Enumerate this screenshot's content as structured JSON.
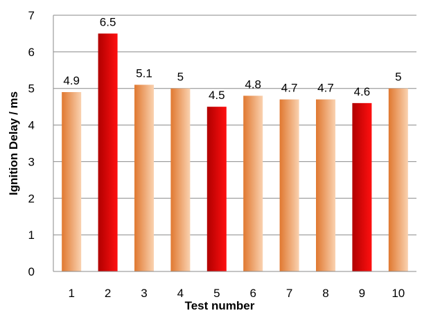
{
  "chart_data": {
    "type": "bar",
    "categories": [
      "1",
      "2",
      "3",
      "4",
      "5",
      "6",
      "7",
      "8",
      "9",
      "10"
    ],
    "values": [
      4.9,
      6.5,
      5.1,
      5,
      4.5,
      4.8,
      4.7,
      4.7,
      4.6,
      5
    ],
    "data_labels": [
      "4.9",
      "6.5",
      "5.1",
      "5",
      "4.5",
      "4.8",
      "4.7",
      "4.7",
      "4.6",
      "5"
    ],
    "bar_styles": [
      "orange",
      "red",
      "orange",
      "orange",
      "red",
      "orange",
      "orange",
      "orange",
      "red",
      "orange"
    ],
    "title": "",
    "xlabel": "Test number",
    "ylabel": "Ignition Delay / ms",
    "ylim": [
      0,
      7
    ],
    "yticks": [
      "0",
      "1",
      "2",
      "3",
      "4",
      "5",
      "6",
      "7"
    ],
    "grid": true,
    "legend": "none",
    "colors": {
      "orange_dark": "#e07830",
      "orange_light": "#fad2b0",
      "red_dark": "#b00000",
      "red_light": "#ff1010",
      "grid": "#888888"
    }
  }
}
